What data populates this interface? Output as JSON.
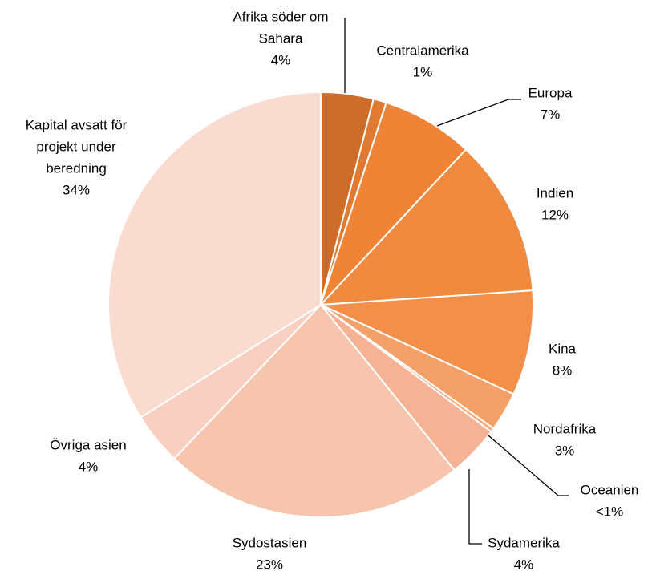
{
  "chart_data": {
    "type": "pie",
    "title": "",
    "slices": [
      {
        "label": "Afrika söder om Sahara",
        "value": 4,
        "display": "4%",
        "color": "#ce6c2a"
      },
      {
        "label": "Centralamerika",
        "value": 1,
        "display": "1%",
        "color": "#e07a32"
      },
      {
        "label": "Europa",
        "value": 7,
        "display": "7%",
        "color": "#ef8436"
      },
      {
        "label": "Indien",
        "value": 12,
        "display": "12%",
        "color": "#f08a3e"
      },
      {
        "label": "Kina",
        "value": 8,
        "display": "8%",
        "color": "#f2904a"
      },
      {
        "label": "Nordafrika",
        "value": 3,
        "display": "3%",
        "color": "#f4a069"
      },
      {
        "label": "Oceanien",
        "value": 0.3,
        "display": "<1%",
        "color": "#f5a97b"
      },
      {
        "label": "Sydamerika",
        "value": 4,
        "display": "4%",
        "color": "#f6b294"
      },
      {
        "label": "Sydostasien",
        "value": 23,
        "display": "23%",
        "color": "#f7c4ad"
      },
      {
        "label": "Övriga asien",
        "value": 4,
        "display": "4%",
        "color": "#f8cfc1"
      },
      {
        "label": "Kapital avsatt för projekt under beredning",
        "value": 34,
        "display": "34%",
        "color": "#fadbd0"
      }
    ]
  }
}
